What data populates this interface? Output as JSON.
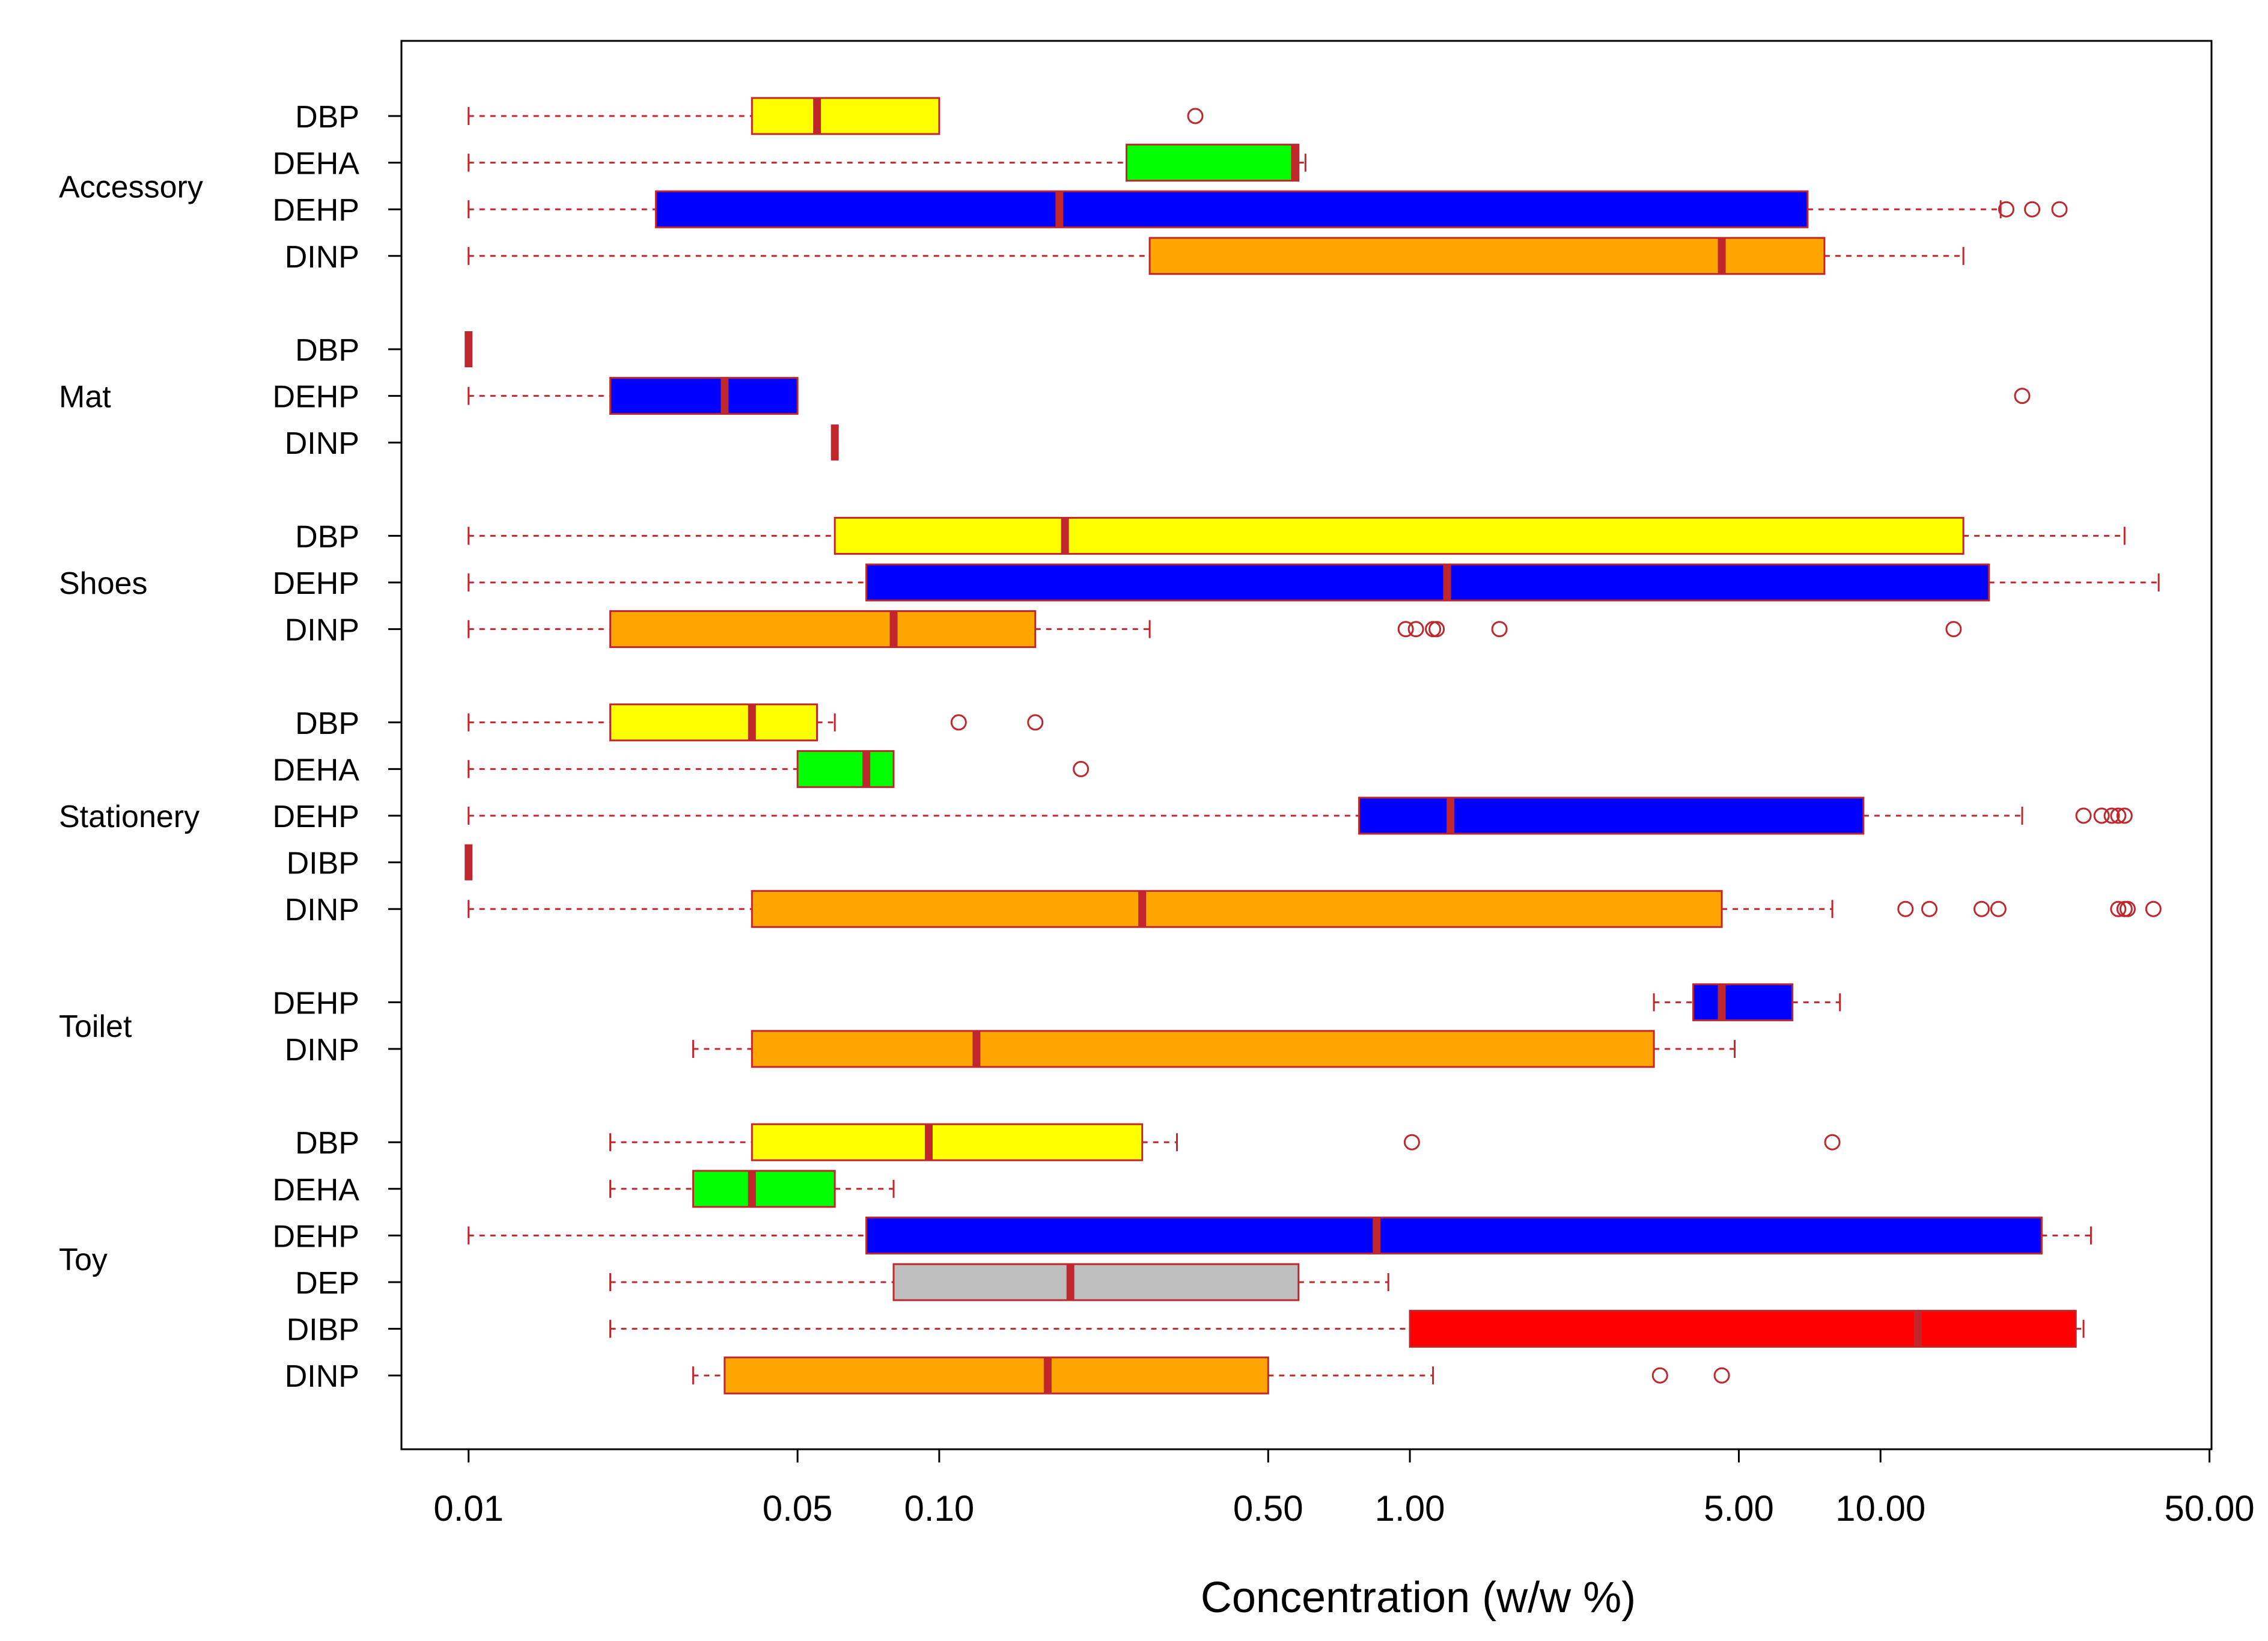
{
  "chart_data": {
    "type": "boxplot-horizontal",
    "xlabel": "Concentration (w/w %)",
    "xscale": "log",
    "xlim": [
      0.0072,
      50.5
    ],
    "xticks": [
      {
        "value": 0.01,
        "label": "0.01"
      },
      {
        "value": 0.05,
        "label": "0.05"
      },
      {
        "value": 0.1,
        "label": "0.10"
      },
      {
        "value": 0.5,
        "label": "0.50"
      },
      {
        "value": 1,
        "label": "1.00"
      },
      {
        "value": 5,
        "label": "5.00"
      },
      {
        "value": 10,
        "label": "10.00"
      },
      {
        "value": 50,
        "label": "50.00"
      }
    ],
    "colors": {
      "DBP": "#ffff00",
      "DEHA": "#00ff00",
      "DEHP": "#0000ff",
      "DINP": "#ffa500",
      "DEP": "#bebebe",
      "DIBP": "#ff0000",
      "line": "#c0272d"
    },
    "groups": [
      {
        "name": "Accessory",
        "rows": [
          {
            "label": "DBP",
            "min": 0.01,
            "q1": 0.04,
            "median": 0.055,
            "q3": 0.1,
            "max": 0.1,
            "outliers": [
              0.35
            ]
          },
          {
            "label": "DEHA",
            "min": 0.01,
            "q1": 0.25,
            "median": 0.57,
            "q3": 0.58,
            "max": 0.6,
            "outliers": []
          },
          {
            "label": "DEHP",
            "min": 0.01,
            "q1": 0.025,
            "median": 0.18,
            "q3": 7.0,
            "max": 18.0,
            "outliers": [
              18.5,
              21,
              24
            ]
          },
          {
            "label": "DINP",
            "min": 0.01,
            "q1": 0.28,
            "median": 4.6,
            "q3": 7.6,
            "max": 15.0,
            "outliers": []
          }
        ]
      },
      {
        "name": "Mat",
        "rows": [
          {
            "label": "DBP",
            "min": 0.01,
            "q1": 0.01,
            "median": 0.01,
            "q3": 0.01,
            "max": 0.01,
            "outliers": []
          },
          {
            "label": "DEHP",
            "min": 0.01,
            "q1": 0.02,
            "median": 0.035,
            "q3": 0.05,
            "max": 0.05,
            "outliers": [
              20
            ]
          },
          {
            "label": "DINP",
            "min": 0.06,
            "q1": 0.06,
            "median": 0.06,
            "q3": 0.06,
            "max": 0.06,
            "outliers": []
          }
        ]
      },
      {
        "name": "Shoes",
        "rows": [
          {
            "label": "DBP",
            "min": 0.01,
            "q1": 0.06,
            "median": 0.185,
            "q3": 15.0,
            "max": 33.0,
            "outliers": []
          },
          {
            "label": "DEHP",
            "min": 0.01,
            "q1": 0.07,
            "median": 1.2,
            "q3": 17.0,
            "max": 39.0,
            "outliers": []
          },
          {
            "label": "DINP",
            "min": 0.01,
            "q1": 0.02,
            "median": 0.08,
            "q3": 0.16,
            "max": 0.28,
            "outliers": [
              0.98,
              1.03,
              1.12,
              1.14,
              1.55,
              14.3
            ]
          }
        ]
      },
      {
        "name": "Stationery",
        "rows": [
          {
            "label": "DBP",
            "min": 0.01,
            "q1": 0.02,
            "median": 0.04,
            "q3": 0.055,
            "max": 0.06,
            "outliers": [
              0.11,
              0.16
            ]
          },
          {
            "label": "DEHA",
            "min": 0.01,
            "q1": 0.05,
            "median": 0.07,
            "q3": 0.08,
            "max": 0.08,
            "outliers": [
              0.2
            ]
          },
          {
            "label": "DEHP",
            "min": 0.01,
            "q1": 0.78,
            "median": 1.22,
            "q3": 9.2,
            "max": 20.0,
            "outliers": [
              27,
              29.5,
              31,
              32,
              33
            ]
          },
          {
            "label": "DIBP",
            "min": 0.01,
            "q1": 0.01,
            "median": 0.01,
            "q3": 0.01,
            "max": 0.01,
            "outliers": []
          },
          {
            "label": "DINP",
            "min": 0.01,
            "q1": 0.04,
            "median": 0.27,
            "q3": 4.6,
            "max": 7.9,
            "outliers": [
              11.3,
              12.7,
              16.4,
              17.8,
              32,
              33,
              33.5,
              38
            ]
          }
        ]
      },
      {
        "name": "Toilet",
        "rows": [
          {
            "label": "DEHP",
            "min": 3.3,
            "q1": 4.0,
            "median": 4.6,
            "q3": 6.5,
            "max": 8.2,
            "outliers": []
          },
          {
            "label": "DINP",
            "min": 0.03,
            "q1": 0.04,
            "median": 0.12,
            "q3": 3.3,
            "max": 4.9,
            "outliers": []
          }
        ]
      },
      {
        "name": "Toy",
        "rows": [
          {
            "label": "DBP",
            "min": 0.02,
            "q1": 0.04,
            "median": 0.095,
            "q3": 0.27,
            "max": 0.32,
            "outliers": [
              1.01,
              7.9
            ]
          },
          {
            "label": "DEHA",
            "min": 0.02,
            "q1": 0.03,
            "median": 0.04,
            "q3": 0.06,
            "max": 0.08,
            "outliers": []
          },
          {
            "label": "DEHP",
            "min": 0.01,
            "q1": 0.07,
            "median": 0.85,
            "q3": 22.0,
            "max": 28.0,
            "outliers": []
          },
          {
            "label": "DEP",
            "min": 0.02,
            "q1": 0.08,
            "median": 0.19,
            "q3": 0.58,
            "max": 0.9,
            "outliers": []
          },
          {
            "label": "DIBP",
            "min": 0.02,
            "q1": 1.0,
            "median": 12.0,
            "q3": 26.0,
            "max": 27.0,
            "outliers": []
          },
          {
            "label": "DINP",
            "min": 0.03,
            "q1": 0.035,
            "median": 0.17,
            "q3": 0.5,
            "max": 1.12,
            "outliers": [
              3.4,
              4.6
            ]
          }
        ]
      }
    ]
  }
}
